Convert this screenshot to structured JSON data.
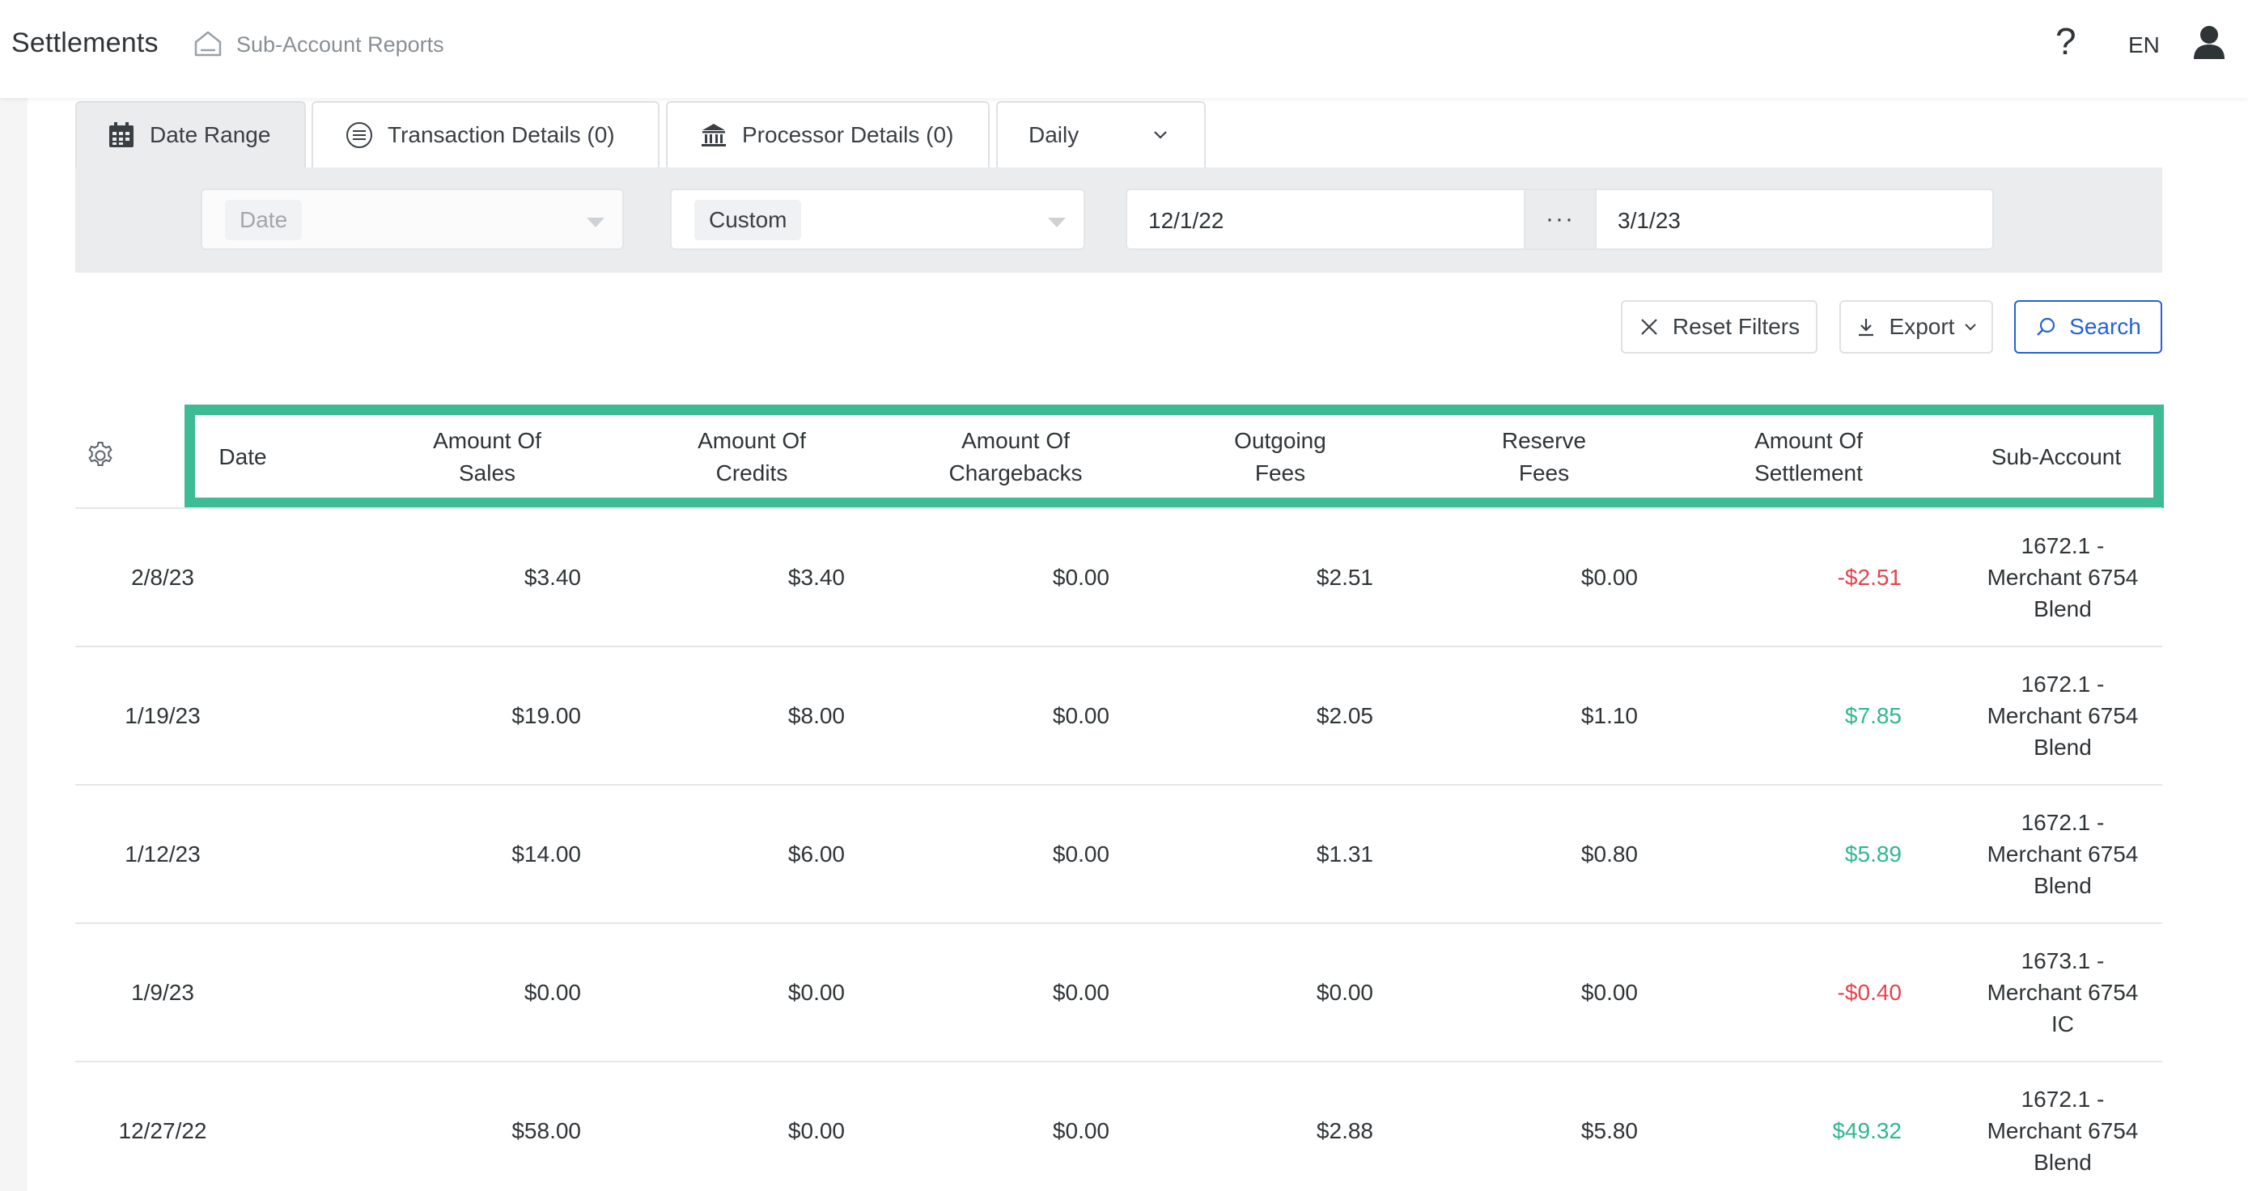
{
  "header": {
    "title": "Settlements",
    "breadcrumb": "Sub-Account Reports",
    "help_symbol": "?",
    "language": "EN"
  },
  "tabs": {
    "date_range": "Date Range",
    "transaction_details": "Transaction Details (0)",
    "processor_details": "Processor Details (0)",
    "period": "Daily"
  },
  "filters": {
    "field": "Date",
    "range_type": "Custom",
    "start_date": "12/1/22",
    "separator": "···",
    "end_date": "3/1/23"
  },
  "actions": {
    "reset": "Reset Filters",
    "export": "Export",
    "search": "Search"
  },
  "table": {
    "columns": [
      [
        "Date"
      ],
      [
        "Amount Of",
        "Sales"
      ],
      [
        "Amount Of",
        "Credits"
      ],
      [
        "Amount Of",
        "Chargebacks"
      ],
      [
        "Outgoing",
        "Fees"
      ],
      [
        "Reserve",
        "Fees"
      ],
      [
        "Amount Of",
        "Settlement"
      ],
      [
        "Sub-Account"
      ]
    ],
    "rows": [
      {
        "date": "2/8/23",
        "sales": "$3.40",
        "credits": "$3.40",
        "chargebacks": "$0.00",
        "outgoing": "$2.51",
        "reserve": "$0.00",
        "settlement": "-$2.51",
        "sub1": "1672.1 -",
        "sub2": "Merchant 6754",
        "sub3": "Blend"
      },
      {
        "date": "1/19/23",
        "sales": "$19.00",
        "credits": "$8.00",
        "chargebacks": "$0.00",
        "outgoing": "$2.05",
        "reserve": "$1.10",
        "settlement": "$7.85",
        "sub1": "1672.1 -",
        "sub2": "Merchant 6754",
        "sub3": "Blend"
      },
      {
        "date": "1/12/23",
        "sales": "$14.00",
        "credits": "$6.00",
        "chargebacks": "$0.00",
        "outgoing": "$1.31",
        "reserve": "$0.80",
        "settlement": "$5.89",
        "sub1": "1672.1 -",
        "sub2": "Merchant 6754",
        "sub3": "Blend"
      },
      {
        "date": "1/9/23",
        "sales": "$0.00",
        "credits": "$0.00",
        "chargebacks": "$0.00",
        "outgoing": "$0.00",
        "reserve": "$0.00",
        "settlement": "-$0.40",
        "sub1": "1673.1 -",
        "sub2": "Merchant 6754",
        "sub3": "IC"
      },
      {
        "date": "12/27/22",
        "sales": "$58.00",
        "credits": "$0.00",
        "chargebacks": "$0.00",
        "outgoing": "$2.88",
        "reserve": "$5.80",
        "settlement": "$49.32",
        "sub1": "1672.1 -",
        "sub2": "Merchant 6754",
        "sub3": "Blend"
      }
    ]
  },
  "colors": {
    "highlight": "#3dbb94",
    "negative": "#e2444e",
    "positive": "#2fb88f",
    "accent": "#2462d8"
  }
}
